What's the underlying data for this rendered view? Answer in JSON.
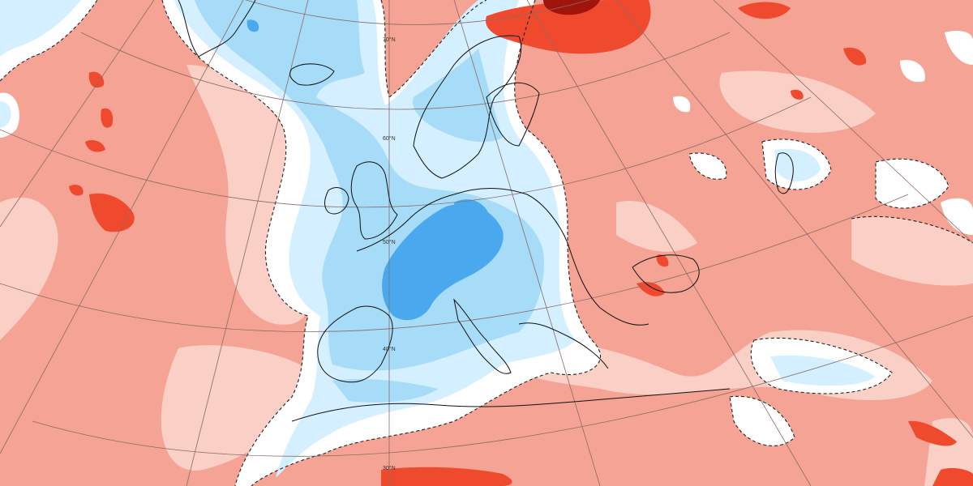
{
  "map": {
    "projection": "polar stereographic (conic) — Europe / North Atlantic",
    "field": "anomaly shading",
    "colors": {
      "strong_warm": "#f04a2e",
      "warm": "#f4a394",
      "weak_warm": "#f9cfc6",
      "neutral": "#ffffff",
      "weak_cold": "#d4efff",
      "cold": "#a6dcf7",
      "strong_cold": "#4aa9ee",
      "extreme_warm": "#a0140c",
      "coastline": "#111111",
      "graticule": "#8a6b63"
    },
    "latitude_labels": [
      {
        "text": "70°N"
      },
      {
        "text": "60°N"
      },
      {
        "text": "50°N"
      },
      {
        "text": "40°N"
      },
      {
        "text": "30°N"
      }
    ]
  }
}
